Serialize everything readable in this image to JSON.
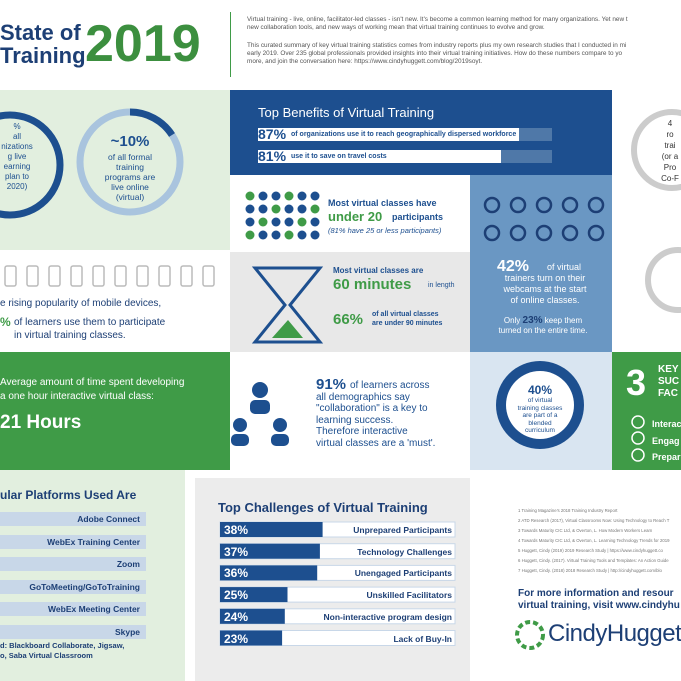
{
  "header": {
    "title_line1": "State of",
    "title_line2": "Training",
    "year": "2019",
    "intro": [
      "Virtual training - live, online, facilitator-led classes - isn't new. It's become a common learning method for many organizations. Yet new t",
      "new collaboration tools, and new ways of working mean that virtual training continues to evolve and grow."
    ],
    "summary": [
      "This curated summary of key virtual training statistics comes from industry reports plus my own research studies that I conducted in mi",
      "early 2019. Over 235 global professionals provided insights into their virtual training initiatives. How do these numbers compare to yo",
      "more, and join the conversation here: https://www.cindyhuggett.com/blog/2019soyt."
    ]
  },
  "orgs_stat": [
    "%",
    "all",
    "nizations",
    "g live",
    "earning",
    "plan to",
    "2020)"
  ],
  "formal_stat": {
    "value": "~10%",
    "lines": [
      "of all formal",
      "training",
      "programs are",
      "live online",
      "(virtual)"
    ]
  },
  "benefits": {
    "title": "Top Benefits of Virtual Training",
    "values": [
      87,
      81
    ],
    "value_labels": [
      "87%",
      "81%"
    ],
    "texts": [
      "of organizations use it to reach geographically dispersed workforce",
      "use it to save on travel costs"
    ]
  },
  "participants": {
    "line1": "Most virtual classes have",
    "highlight": "under 20",
    "word": "participants",
    "note": "(81% have 25 or less participants)"
  },
  "right_stat": [
    "4",
    "ro",
    "trai",
    "(or a",
    "Pro",
    "Co-F"
  ],
  "webcams": {
    "value": "42%",
    "text": [
      "of virtual",
      "trainers turn on their",
      "webcams at the start",
      "of online classes."
    ],
    "only": "Only",
    "value2": "23%",
    "text2": [
      "keep them",
      "turned on the entire time."
    ]
  },
  "mobile": {
    "line1": "e rising popularity of mobile devices,",
    "value": "%",
    "line2": "of learners use them to participate",
    "line3": "in virtual training classes."
  },
  "duration": {
    "line1": "Most virtual classes are",
    "highlight": "60 minutes",
    "suffix": "in length",
    "value": "66%",
    "line2": "of all virtual classes",
    "line3": "are under 90 minutes"
  },
  "dev_time": {
    "line1": "Average amount of time spent developing",
    "line2": "a one hour interactive virtual class:",
    "value": "21 Hours"
  },
  "collab": {
    "value": "91%",
    "lines": [
      "of learners across",
      "all demographics say",
      "\"collaboration\" is a key to",
      "learning success.",
      "Therefore interactive",
      "virtual classes are a 'must'."
    ]
  },
  "blended": {
    "value": "40%",
    "lines": [
      "of virtual",
      "training classes",
      "are part of a",
      "blended",
      "curriculum"
    ]
  },
  "key_factors": {
    "number": "3",
    "heading": [
      "KEY",
      "SUC",
      "FAC"
    ],
    "items": [
      "Interac",
      "Engag",
      "Prepar"
    ]
  },
  "platforms": {
    "title": "ular Platforms Used Are",
    "items": [
      "Adobe Connect",
      "WebEx Training Center",
      "Zoom",
      "GoToMeeting/GoToTraining",
      "WebEx Meeting Center",
      "Skype"
    ],
    "note": [
      "d: Blackboard Collaborate, Jigsaw,",
      "o, Saba Virtual Classroom"
    ]
  },
  "challenges": {
    "title": "Top Challenges of Virtual Training",
    "values": [
      38,
      37,
      36,
      25,
      24,
      23
    ],
    "value_labels": [
      "38%",
      "37%",
      "36%",
      "25%",
      "24%",
      "23%"
    ],
    "labels": [
      "Unprepared Participants",
      "Technology Challenges",
      "Unengaged Participants",
      "Unskilled Facilitators",
      "Non-interactive program design",
      "Lack of Buy-In"
    ]
  },
  "footnotes": [
    "1 Training Magazine's 2018 Training Industry Report",
    "2 ATD Research (2017), Virtual Classrooms Now: Using Technology to Reach T",
    "3 Towards Maturity CIC Ltd, & Overton, L. How Modern Workers Learn",
    "4 Towards Maturity CIC Ltd, & Overton, L. Learning Technology Trends for 2019",
    "5 Huggett, Cindy (2019) 2019 Research Study | https://www.cindyhuggett.co",
    "6 Huggett, Cindy. (2017). Virtual Training Tools and Templates: An Action Guide",
    "7 Huggett, Cindy. (2018) 2018 Research Study | http://cindyhuggett.com/blo"
  ],
  "cta": [
    "For more information and resour",
    "virtual training, visit www.cindyhu"
  ],
  "logo": "CindyHuggett"
}
